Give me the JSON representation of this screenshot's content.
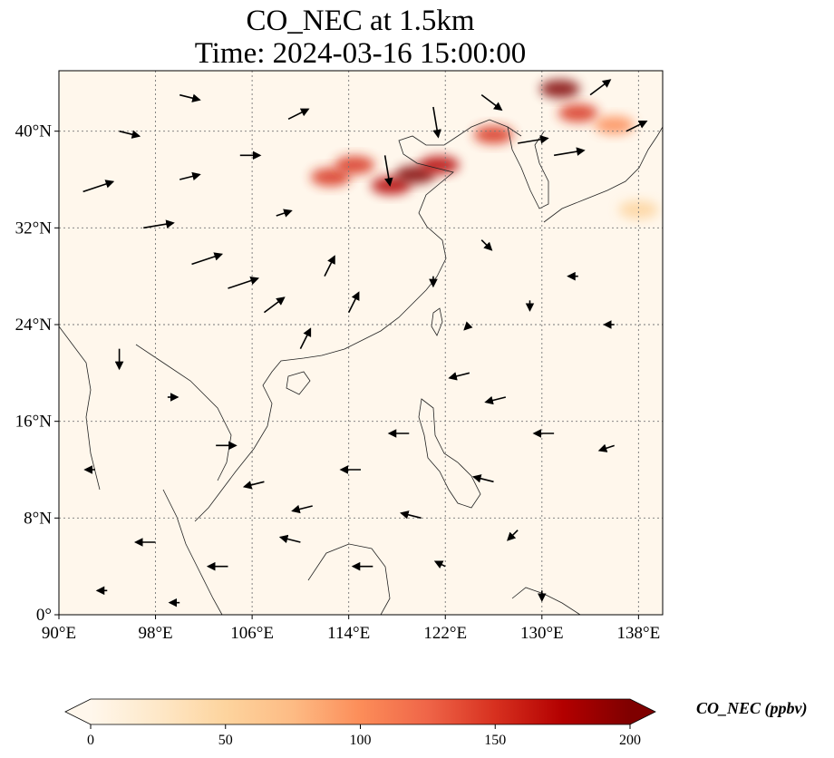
{
  "title_line1": "CO_NEC at 1.5km",
  "title_line2": "Time: 2024-03-16 15:00:00",
  "map": {
    "lon_range": [
      90,
      140
    ],
    "lat_range": [
      0,
      45
    ],
    "x_ticks": [
      {
        "value": 90,
        "label": "90°E"
      },
      {
        "value": 98,
        "label": "98°E"
      },
      {
        "value": 106,
        "label": "106°E"
      },
      {
        "value": 114,
        "label": "114°E"
      },
      {
        "value": 122,
        "label": "122°E"
      },
      {
        "value": 130,
        "label": "130°E"
      },
      {
        "value": 138,
        "label": "138°E"
      }
    ],
    "y_ticks": [
      {
        "value": 0,
        "label": "0°"
      },
      {
        "value": 8,
        "label": "8°N"
      },
      {
        "value": 16,
        "label": "16°N"
      },
      {
        "value": 24,
        "label": "24°N"
      },
      {
        "value": 32,
        "label": "32°N"
      },
      {
        "value": 40,
        "label": "40°N"
      }
    ],
    "gridlines": true,
    "field_color_max": "#7f0000",
    "field_color_min": "#fff7ec",
    "plumes": [
      {
        "lon": 117.5,
        "lat": 35.5,
        "value": 180
      },
      {
        "lon": 119.5,
        "lat": 36.4,
        "value": 190
      },
      {
        "lon": 121.5,
        "lat": 37.2,
        "value": 170
      },
      {
        "lon": 112.5,
        "lat": 36.2,
        "value": 160
      },
      {
        "lon": 114.5,
        "lat": 37.2,
        "value": 150
      },
      {
        "lon": 126,
        "lat": 39.7,
        "value": 150
      },
      {
        "lon": 131.5,
        "lat": 43.5,
        "value": 190
      },
      {
        "lon": 133,
        "lat": 41.5,
        "value": 140
      },
      {
        "lon": 136,
        "lat": 40.5,
        "value": 90
      },
      {
        "lon": 138,
        "lat": 33.5,
        "value": 40
      }
    ],
    "wind_vectors": [
      {
        "lon": 92,
        "lat": 35,
        "u": 3,
        "v": 1
      },
      {
        "lon": 97,
        "lat": 32,
        "u": 3,
        "v": 0.5
      },
      {
        "lon": 101,
        "lat": 29,
        "u": 3,
        "v": 1
      },
      {
        "lon": 104,
        "lat": 27,
        "u": 3,
        "v": 1
      },
      {
        "lon": 107,
        "lat": 25,
        "u": 2,
        "v": 1.5
      },
      {
        "lon": 110,
        "lat": 22,
        "u": 1,
        "v": 2
      },
      {
        "lon": 112,
        "lat": 28,
        "u": 1,
        "v": 2
      },
      {
        "lon": 114,
        "lat": 25,
        "u": 1,
        "v": 2
      },
      {
        "lon": 117,
        "lat": 38,
        "u": 0.5,
        "v": -3
      },
      {
        "lon": 121,
        "lat": 42,
        "u": 0.5,
        "v": -3
      },
      {
        "lon": 125,
        "lat": 43,
        "u": 2,
        "v": -1.5
      },
      {
        "lon": 128,
        "lat": 39,
        "u": 3,
        "v": 0.5
      },
      {
        "lon": 131,
        "lat": 38,
        "u": 3,
        "v": 0.5
      },
      {
        "lon": 134,
        "lat": 43,
        "u": 2,
        "v": 1.5
      },
      {
        "lon": 137,
        "lat": 40,
        "u": 2,
        "v": 1
      },
      {
        "lon": 95,
        "lat": 22,
        "u": 0,
        "v": -2
      },
      {
        "lon": 99,
        "lat": 18,
        "u": 1,
        "v": 0
      },
      {
        "lon": 103,
        "lat": 14,
        "u": 2,
        "v": 0
      },
      {
        "lon": 107,
        "lat": 11,
        "u": -2,
        "v": -0.5
      },
      {
        "lon": 111,
        "lat": 9,
        "u": -2,
        "v": -0.5
      },
      {
        "lon": 115,
        "lat": 12,
        "u": -2,
        "v": 0
      },
      {
        "lon": 119,
        "lat": 15,
        "u": -2,
        "v": 0
      },
      {
        "lon": 124,
        "lat": 20,
        "u": -2,
        "v": -0.5
      },
      {
        "lon": 127,
        "lat": 18,
        "u": -2,
        "v": -0.5
      },
      {
        "lon": 131,
        "lat": 15,
        "u": -2,
        "v": 0
      },
      {
        "lon": 136,
        "lat": 14,
        "u": -1.5,
        "v": -0.5
      },
      {
        "lon": 98,
        "lat": 6,
        "u": -2,
        "v": 0
      },
      {
        "lon": 104,
        "lat": 4,
        "u": -2,
        "v": 0
      },
      {
        "lon": 110,
        "lat": 6,
        "u": -2,
        "v": 0.5
      },
      {
        "lon": 116,
        "lat": 4,
        "u": -2,
        "v": 0
      },
      {
        "lon": 120,
        "lat": 8,
        "u": -2,
        "v": 0.5
      },
      {
        "lon": 126,
        "lat": 11,
        "u": -2,
        "v": 0.5
      },
      {
        "lon": 128,
        "lat": 7,
        "u": -1,
        "v": -1
      },
      {
        "lon": 93,
        "lat": 12,
        "u": -1,
        "v": 0
      },
      {
        "lon": 95,
        "lat": 40,
        "u": 2,
        "v": -0.5
      },
      {
        "lon": 100,
        "lat": 43,
        "u": 2,
        "v": -0.5
      },
      {
        "lon": 105,
        "lat": 38,
        "u": 2,
        "v": 0
      },
      {
        "lon": 109,
        "lat": 41,
        "u": 2,
        "v": 1
      },
      {
        "lon": 100,
        "lat": 36,
        "u": 2,
        "v": 0.5
      },
      {
        "lon": 108,
        "lat": 33,
        "u": 1.5,
        "v": 0.5
      },
      {
        "lon": 121,
        "lat": 28,
        "u": 0,
        "v": -1
      },
      {
        "lon": 125,
        "lat": 31,
        "u": 1,
        "v": -1
      },
      {
        "lon": 129,
        "lat": 26,
        "u": 0,
        "v": -1
      },
      {
        "lon": 133,
        "lat": 28,
        "u": -1,
        "v": 0
      },
      {
        "lon": 136,
        "lat": 24,
        "u": -1,
        "v": 0
      },
      {
        "lon": 124,
        "lat": 24,
        "u": -0.5,
        "v": -0.5
      },
      {
        "lon": 94,
        "lat": 2,
        "u": -1,
        "v": 0
      },
      {
        "lon": 100,
        "lat": 1,
        "u": -1,
        "v": 0
      },
      {
        "lon": 130,
        "lat": 2,
        "u": 0,
        "v": -1
      },
      {
        "lon": 122,
        "lat": 4,
        "u": -1,
        "v": 0.5
      }
    ]
  },
  "colorbar": {
    "label": "CO_NEC (ppbv)",
    "min": 0,
    "max": 200,
    "extend": "both",
    "cmap": "OrRd",
    "stops": [
      "#fff7ec",
      "#fee8c8",
      "#fdd49e",
      "#fdbb84",
      "#fc8d59",
      "#ef6548",
      "#d7301f",
      "#b30000",
      "#7f0000"
    ],
    "ticks": [
      {
        "value": 0,
        "label": "0"
      },
      {
        "value": 50,
        "label": "50"
      },
      {
        "value": 100,
        "label": "100"
      },
      {
        "value": 150,
        "label": "150"
      },
      {
        "value": 200,
        "label": "200"
      }
    ]
  }
}
